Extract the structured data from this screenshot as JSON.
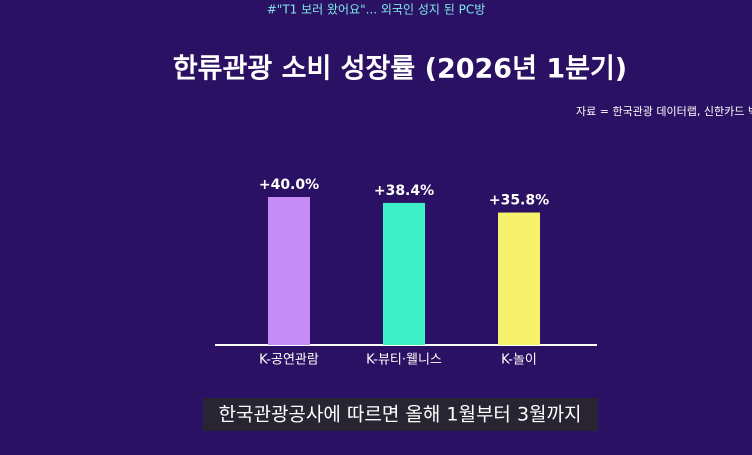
{
  "header": "#\"T1 보러 왔어요\"... 외국인 성지 된 PC방",
  "chart_data": {
    "type": "bar",
    "title": "한류관광 소비 성장률 (2026년 1분기)",
    "source": "자료 = 한국관광 데이터랩, 신한카드 빅",
    "categories": [
      "K-공연관람",
      "K-뷰티·웰니스",
      "K-놀이"
    ],
    "values": [
      40.0,
      38.4,
      35.8
    ],
    "value_labels": [
      "+40.0%",
      "+38.4%",
      "+35.8%"
    ],
    "colors": [
      "#c68cf6",
      "#3ff0c9",
      "#f6f26c"
    ]
  },
  "caption": "한국관광공사에 따르면 올해 1월부터 3월까지"
}
